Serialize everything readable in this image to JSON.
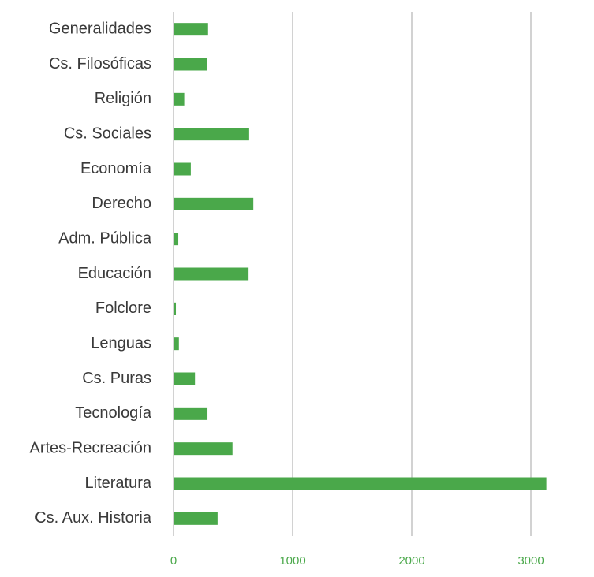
{
  "chart_data": {
    "type": "bar",
    "orientation": "horizontal",
    "categories": [
      "Generalidades",
      "Cs. Filosóficas",
      "Religión",
      "Cs. Sociales",
      "Economía",
      "Derecho",
      "Adm. Pública",
      "Educación",
      "Folclore",
      "Lenguas",
      "Cs. Puras",
      "Tecnología",
      "Artes-Recreación",
      "Literatura",
      "Cs. Aux. Historia"
    ],
    "values": [
      290,
      280,
      90,
      635,
      145,
      670,
      40,
      630,
      20,
      45,
      180,
      285,
      495,
      3130,
      370
    ],
    "color": "#4aa84a",
    "xlim": [
      0,
      3300
    ],
    "xticks": [
      0,
      1000,
      2000,
      3000
    ],
    "grid": true
  }
}
